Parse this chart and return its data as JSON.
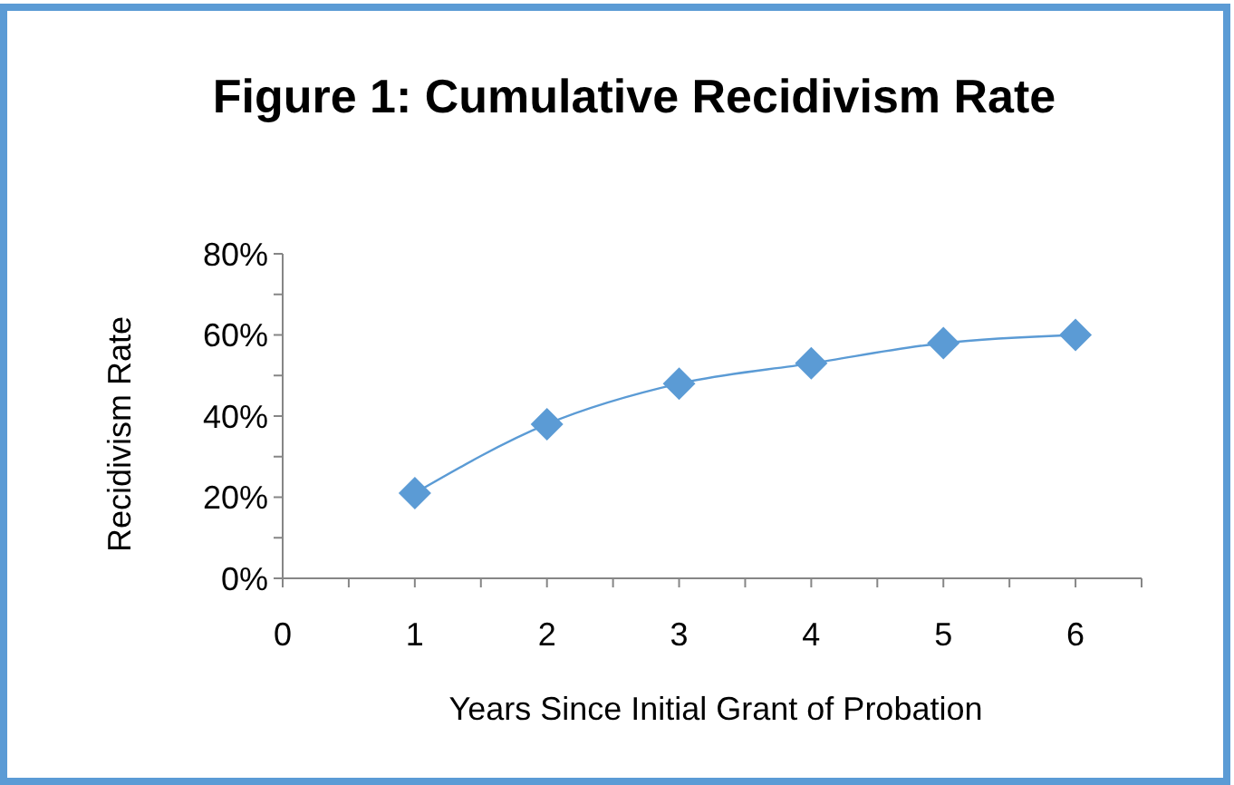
{
  "chart_data": {
    "type": "line",
    "title": "Figure 1: Cumulative Recidivism Rate",
    "xlabel": "Years Since Initial Grant of Probation",
    "ylabel": "Recidivism Rate",
    "x": [
      1,
      2,
      3,
      4,
      5,
      6
    ],
    "series": [
      {
        "color": "#5b9bd5",
        "values": [
          21,
          38,
          48,
          53,
          58,
          60
        ]
      }
    ],
    "xlim": [
      0,
      6.5
    ],
    "xticks": [
      0,
      1,
      2,
      3,
      4,
      5,
      6
    ],
    "ylim": [
      0,
      80
    ],
    "yticks": [
      {
        "value": 0,
        "label": "0%"
      },
      {
        "value": 20,
        "label": "20%"
      },
      {
        "value": 40,
        "label": "40%"
      },
      {
        "value": 60,
        "label": "60%"
      },
      {
        "value": 80,
        "label": "80%"
      }
    ],
    "grid": false,
    "marker": "diamond",
    "line_style": "solid"
  }
}
